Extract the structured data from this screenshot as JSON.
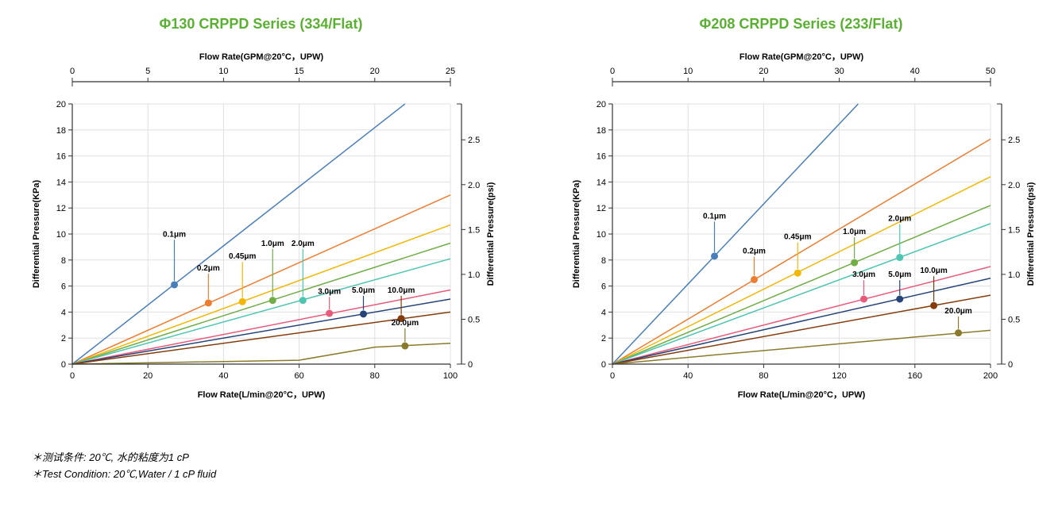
{
  "title_color": "#5ab031",
  "title_fontsize": 18,
  "axis_color": "#333333",
  "grid_color": "#e0e0e0",
  "tick_font_size": 11,
  "axis_label_fontsize": 11,
  "axis_label_bold": true,
  "line_width": 1.5,
  "marker_radius": 4.5,
  "annotation_fontsize": 10,
  "footnote_fontsize": 13,
  "colors": {
    "0.1": "#4a7ebb",
    "0.2": "#ed7d31",
    "0.45": "#f2b705",
    "1.0": "#70ad47",
    "2.0": "#4ec5b0",
    "3.0": "#e85a7a",
    "5.0": "#264478",
    "10.0": "#843c0c",
    "20.0": "#8a7a2b"
  },
  "charts": [
    {
      "title": "Φ130 CRPPD Series (334/Flat)",
      "x_bottom": {
        "label": "Flow Rate(L/min@20°C，UPW)",
        "min": 0,
        "max": 100,
        "ticks": [
          0,
          20,
          40,
          60,
          80,
          100
        ]
      },
      "x_top": {
        "label": "Flow Rate(GPM@20°C，UPW)",
        "min": 0,
        "max": 25,
        "ticks": [
          0,
          5,
          10,
          15,
          20,
          25
        ]
      },
      "y_left": {
        "label": "Differential Pressure(KPa)",
        "min": 0,
        "max": 20,
        "ticks": [
          0,
          2,
          4,
          6,
          8,
          10,
          12,
          14,
          16,
          18,
          20
        ]
      },
      "y_right": {
        "label": "Differential Pressure(psi)",
        "min": 0,
        "max": 2.9,
        "ticks": [
          0,
          0.5,
          1.0,
          1.5,
          2.0,
          2.5
        ]
      },
      "series": [
        {
          "key": "0.1",
          "label": "0.1μm",
          "points": [
            [
              0,
              0
            ],
            [
              88,
              20
            ]
          ],
          "marker": [
            27,
            6.1
          ],
          "label_at": [
            27,
            9.8
          ]
        },
        {
          "key": "0.2",
          "label": "0.2μm",
          "points": [
            [
              0,
              0
            ],
            [
              100,
              13.0
            ]
          ],
          "marker": [
            36,
            4.7
          ],
          "label_at": [
            36,
            7.2
          ]
        },
        {
          "key": "0.45",
          "label": "0.45μm",
          "points": [
            [
              0,
              0
            ],
            [
              100,
              10.7
            ]
          ],
          "marker": [
            45,
            4.8
          ],
          "label_at": [
            45,
            8.1
          ]
        },
        {
          "key": "1.0",
          "label": "1.0μm",
          "points": [
            [
              0,
              0
            ],
            [
              100,
              9.3
            ]
          ],
          "marker": [
            53,
            4.9
          ],
          "label_at": [
            53,
            9.1
          ]
        },
        {
          "key": "2.0",
          "label": "2.0μm",
          "points": [
            [
              0,
              0
            ],
            [
              100,
              8.1
            ]
          ],
          "marker": [
            61,
            4.9
          ],
          "label_at": [
            61,
            9.1
          ]
        },
        {
          "key": "3.0",
          "label": "3.0μm",
          "points": [
            [
              0,
              0
            ],
            [
              100,
              5.7
            ]
          ],
          "marker": [
            68,
            3.9
          ],
          "label_at": [
            68,
            5.4
          ]
        },
        {
          "key": "5.0",
          "label": "5.0μm",
          "points": [
            [
              0,
              0
            ],
            [
              100,
              5.0
            ]
          ],
          "marker": [
            77,
            3.85
          ],
          "label_at": [
            77,
            5.5
          ]
        },
        {
          "key": "10.0",
          "label": "10.0μm",
          "points": [
            [
              0,
              0
            ],
            [
              100,
              4.0
            ]
          ],
          "marker": [
            87,
            3.5
          ],
          "label_at": [
            87,
            5.5
          ]
        },
        {
          "key": "20.0",
          "label": "20.0μm",
          "points": [
            [
              0,
              0
            ],
            [
              60,
              0.3
            ],
            [
              80,
              1.3
            ],
            [
              100,
              1.6
            ]
          ],
          "marker": [
            88,
            1.4
          ],
          "label_at": [
            88,
            3.0
          ]
        }
      ]
    },
    {
      "title": "Φ208 CRPPD Series (233/Flat)",
      "x_bottom": {
        "label": "Flow Rate(L/min@20°C，UPW)",
        "min": 0,
        "max": 200,
        "ticks": [
          0,
          40,
          80,
          120,
          160,
          200
        ]
      },
      "x_top": {
        "label": "Flow Rate(GPM@20°C，UPW)",
        "min": 0,
        "max": 50,
        "ticks": [
          0,
          10,
          20,
          30,
          40,
          50
        ]
      },
      "y_left": {
        "label": "Differential Pressure(KPa)",
        "min": 0,
        "max": 20,
        "ticks": [
          0,
          2,
          4,
          6,
          8,
          10,
          12,
          14,
          16,
          18,
          20
        ]
      },
      "y_right": {
        "label": "Differential Pressure(psi)",
        "min": 0,
        "max": 2.9,
        "ticks": [
          0,
          0.5,
          1.0,
          1.5,
          2.0,
          2.5
        ]
      },
      "series": [
        {
          "key": "0.1",
          "label": "0.1μm",
          "points": [
            [
              0,
              0
            ],
            [
              130,
              20
            ]
          ],
          "marker": [
            54,
            8.3
          ],
          "label_at": [
            54,
            11.2
          ]
        },
        {
          "key": "0.2",
          "label": "0.2μm",
          "points": [
            [
              0,
              0
            ],
            [
              200,
              17.3
            ]
          ],
          "marker": [
            75,
            6.5
          ],
          "label_at": [
            75,
            8.5
          ]
        },
        {
          "key": "0.45",
          "label": "0.45μm",
          "points": [
            [
              0,
              0
            ],
            [
              200,
              14.4
            ]
          ],
          "marker": [
            98,
            7.0
          ],
          "label_at": [
            98,
            9.6
          ]
        },
        {
          "key": "1.0",
          "label": "1.0μm",
          "points": [
            [
              0,
              0
            ],
            [
              200,
              12.2
            ]
          ],
          "marker": [
            128,
            7.8
          ],
          "label_at": [
            128,
            10.0
          ]
        },
        {
          "key": "2.0",
          "label": "2.0μm",
          "points": [
            [
              0,
              0
            ],
            [
              200,
              10.8
            ]
          ],
          "marker": [
            152,
            8.2
          ],
          "label_at": [
            152,
            11.0
          ]
        },
        {
          "key": "3.0",
          "label": "3.0μm",
          "points": [
            [
              0,
              0
            ],
            [
              200,
              7.5
            ]
          ],
          "marker": [
            133,
            5.0
          ],
          "label_at": [
            133,
            6.7
          ]
        },
        {
          "key": "5.0",
          "label": "5.0μm",
          "points": [
            [
              0,
              0
            ],
            [
              200,
              6.6
            ]
          ],
          "marker": [
            152,
            5.0
          ],
          "label_at": [
            152,
            6.7
          ]
        },
        {
          "key": "10.0",
          "label": "10.0μm",
          "points": [
            [
              0,
              0
            ],
            [
              200,
              5.3
            ]
          ],
          "marker": [
            170,
            4.5
          ],
          "label_at": [
            170,
            7.0
          ]
        },
        {
          "key": "20.0",
          "label": "20.0μm",
          "points": [
            [
              0,
              0
            ],
            [
              200,
              2.6
            ]
          ],
          "marker": [
            183,
            2.4
          ],
          "label_at": [
            183,
            3.9
          ]
        }
      ]
    }
  ],
  "footnotes": [
    "＊测试条件: 20℃, 水的粘度为1 cP",
    "＊Test Condition: 20℃,Water / 1 cP fluid"
  ]
}
